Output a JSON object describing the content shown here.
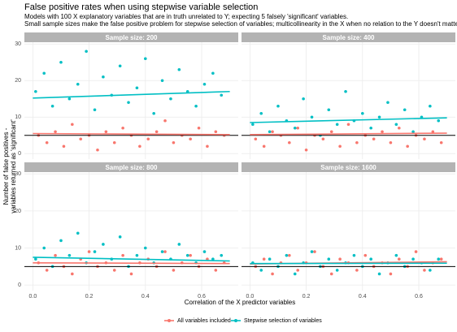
{
  "title": "False positive rates when using stepwise variable selection",
  "subtitle": [
    "Models with 100 X explanatory variables that are in truth unrelated to Y; expecting 5 falsely 'significant' variables.",
    "Small sample sizes make the false positive problem for stepwise selection of variables; multicollinearity in the X when no relation to the Y doesn't matter"
  ],
  "x_label": "Correlation of the X predictor variables",
  "y_label": [
    "Number of false positives -",
    "variables returned as 'significant'"
  ],
  "chart_data": [
    {
      "type": "scatter",
      "title": "Sample size: 200",
      "xlim": [
        -0.03,
        0.73
      ],
      "ylim": [
        -1.5,
        30.5
      ],
      "xticks": [
        {
          "value": 0,
          "label": "0.0"
        },
        {
          "value": 0.2,
          "label": "0.2"
        },
        {
          "value": 0.4,
          "label": "0.4"
        },
        {
          "value": 0.6,
          "label": "0.6"
        }
      ],
      "yticks": [
        0,
        10,
        20,
        30
      ],
      "grid": true,
      "reference_line": 5,
      "series": [
        {
          "name": "All variables included",
          "color": "#F8766D",
          "x": [
            0.02,
            0.05,
            0.08,
            0.11,
            0.14,
            0.17,
            0.2,
            0.23,
            0.26,
            0.29,
            0.32,
            0.35,
            0.38,
            0.41,
            0.44,
            0.47,
            0.5,
            0.53,
            0.56,
            0.59,
            0.62,
            0.65,
            0.68
          ],
          "values": [
            5,
            3,
            6,
            2,
            8,
            4,
            5,
            1,
            6,
            3,
            7,
            5,
            2,
            4,
            6,
            9,
            3,
            5,
            4,
            7,
            2,
            6,
            5
          ],
          "fit": {
            "x": [
              0,
              0.7
            ],
            "values": [
              5.5,
              5.2
            ]
          }
        },
        {
          "name": "Stepwise selection of variables",
          "color": "#00BFC4",
          "x": [
            0.01,
            0.04,
            0.07,
            0.1,
            0.13,
            0.16,
            0.19,
            0.22,
            0.25,
            0.28,
            0.31,
            0.34,
            0.37,
            0.4,
            0.43,
            0.46,
            0.49,
            0.52,
            0.55,
            0.58,
            0.61,
            0.64,
            0.67
          ],
          "values": [
            17,
            22,
            13,
            25,
            15,
            19,
            28,
            12,
            21,
            16,
            24,
            14,
            18,
            26,
            11,
            20,
            15,
            23,
            17,
            13,
            19,
            22,
            16
          ],
          "fit": {
            "x": [
              0,
              0.7
            ],
            "values": [
              15.2,
              17
            ]
          }
        }
      ]
    },
    {
      "type": "scatter",
      "title": "Sample size: 400",
      "xlim": [
        -0.03,
        0.73
      ],
      "ylim": [
        -1.5,
        30.5
      ],
      "xticks": [
        {
          "value": 0,
          "label": "0.0"
        },
        {
          "value": 0.2,
          "label": "0.2"
        },
        {
          "value": 0.4,
          "label": "0.4"
        },
        {
          "value": 0.6,
          "label": "0.6"
        }
      ],
      "yticks": [
        0,
        10,
        20,
        30
      ],
      "grid": true,
      "reference_line": 5,
      "series": [
        {
          "name": "All variables included",
          "color": "#F8766D",
          "x": [
            0.02,
            0.05,
            0.08,
            0.11,
            0.14,
            0.17,
            0.2,
            0.23,
            0.26,
            0.29,
            0.32,
            0.35,
            0.38,
            0.41,
            0.44,
            0.47,
            0.5,
            0.53,
            0.56,
            0.59,
            0.62,
            0.65,
            0.68
          ],
          "values": [
            4,
            2,
            6,
            5,
            3,
            7,
            1,
            5,
            4,
            6,
            2,
            8,
            3,
            5,
            4,
            6,
            3,
            7,
            2,
            5,
            4,
            6,
            3
          ],
          "fit": {
            "x": [
              0,
              0.7
            ],
            "values": [
              5.2,
              5.6
            ]
          }
        },
        {
          "name": "Stepwise selection of variables",
          "color": "#00BFC4",
          "x": [
            0.01,
            0.04,
            0.07,
            0.1,
            0.13,
            0.16,
            0.19,
            0.22,
            0.25,
            0.28,
            0.31,
            0.34,
            0.37,
            0.4,
            0.43,
            0.46,
            0.49,
            0.52,
            0.55,
            0.58,
            0.61,
            0.64,
            0.67
          ],
          "values": [
            8,
            11,
            6,
            13,
            9,
            7,
            15,
            10,
            5,
            12,
            8,
            17,
            9,
            11,
            7,
            10,
            14,
            8,
            12,
            6,
            10,
            13,
            9
          ],
          "fit": {
            "x": [
              0,
              0.7
            ],
            "values": [
              8.5,
              9.8
            ]
          }
        }
      ]
    },
    {
      "type": "scatter",
      "title": "Sample size: 800",
      "xlim": [
        -0.03,
        0.73
      ],
      "ylim": [
        -1.5,
        30.5
      ],
      "xticks": [
        {
          "value": 0,
          "label": "0.0"
        },
        {
          "value": 0.2,
          "label": "0.2"
        },
        {
          "value": 0.4,
          "label": "0.4"
        },
        {
          "value": 0.6,
          "label": "0.6"
        }
      ],
      "yticks": [
        0,
        10,
        20,
        30
      ],
      "grid": true,
      "reference_line": 5,
      "series": [
        {
          "name": "All variables included",
          "color": "#F8766D",
          "x": [
            0.02,
            0.05,
            0.08,
            0.11,
            0.14,
            0.17,
            0.2,
            0.23,
            0.26,
            0.29,
            0.32,
            0.35,
            0.38,
            0.41,
            0.44,
            0.47,
            0.5,
            0.53,
            0.56,
            0.59,
            0.62,
            0.65,
            0.68
          ],
          "values": [
            6,
            4,
            8,
            5,
            3,
            7,
            9,
            5,
            6,
            4,
            8,
            3,
            6,
            7,
            5,
            9,
            4,
            6,
            8,
            5,
            7,
            4,
            6
          ],
          "fit": {
            "x": [
              0,
              0.7
            ],
            "values": [
              6,
              5.8
            ]
          }
        },
        {
          "name": "Stepwise selection of variables",
          "color": "#00BFC4",
          "x": [
            0.01,
            0.04,
            0.07,
            0.1,
            0.13,
            0.16,
            0.19,
            0.22,
            0.25,
            0.28,
            0.31,
            0.34,
            0.37,
            0.4,
            0.43,
            0.46,
            0.49,
            0.52,
            0.55,
            0.58,
            0.61,
            0.64,
            0.67
          ],
          "values": [
            7,
            10,
            5,
            12,
            8,
            14,
            6,
            9,
            11,
            7,
            13,
            5,
            8,
            10,
            6,
            9,
            7,
            11,
            8,
            6,
            9,
            7,
            8
          ],
          "fit": {
            "x": [
              0,
              0.7
            ],
            "values": [
              7.5,
              6.5
            ]
          }
        }
      ]
    },
    {
      "type": "scatter",
      "title": "Sample size: 1600",
      "xlim": [
        -0.03,
        0.73
      ],
      "ylim": [
        -1.5,
        30.5
      ],
      "xticks": [
        {
          "value": 0,
          "label": "0.0"
        },
        {
          "value": 0.2,
          "label": "0.2"
        },
        {
          "value": 0.4,
          "label": "0.4"
        },
        {
          "value": 0.6,
          "label": "0.6"
        }
      ],
      "yticks": [
        0,
        10,
        20,
        30
      ],
      "grid": true,
      "reference_line": 5,
      "series": [
        {
          "name": "All variables included",
          "color": "#F8766D",
          "x": [
            0.02,
            0.05,
            0.08,
            0.11,
            0.14,
            0.17,
            0.2,
            0.23,
            0.26,
            0.29,
            0.32,
            0.35,
            0.38,
            0.41,
            0.44,
            0.47,
            0.5,
            0.53,
            0.56,
            0.59,
            0.62,
            0.65,
            0.68
          ],
          "values": [
            5,
            7,
            3,
            6,
            8,
            4,
            6,
            9,
            5,
            3,
            7,
            6,
            4,
            8,
            5,
            6,
            3,
            7,
            5,
            9,
            4,
            6,
            7
          ],
          "fit": {
            "x": [
              0,
              0.7
            ],
            "values": [
              5.7,
              6.3
            ]
          }
        },
        {
          "name": "Stepwise selection of variables",
          "color": "#00BFC4",
          "x": [
            0.01,
            0.04,
            0.07,
            0.1,
            0.13,
            0.16,
            0.19,
            0.22,
            0.25,
            0.28,
            0.31,
            0.34,
            0.37,
            0.4,
            0.43,
            0.46,
            0.49,
            0.52,
            0.55,
            0.58,
            0.61,
            0.64,
            0.67
          ],
          "values": [
            6,
            4,
            7,
            5,
            8,
            3,
            6,
            9,
            5,
            7,
            4,
            6,
            8,
            5,
            7,
            3,
            6,
            8,
            5,
            7,
            6,
            4,
            7
          ],
          "fit": {
            "x": [
              0,
              0.7
            ],
            "values": [
              5.8,
              5.9
            ]
          }
        }
      ]
    }
  ]
}
